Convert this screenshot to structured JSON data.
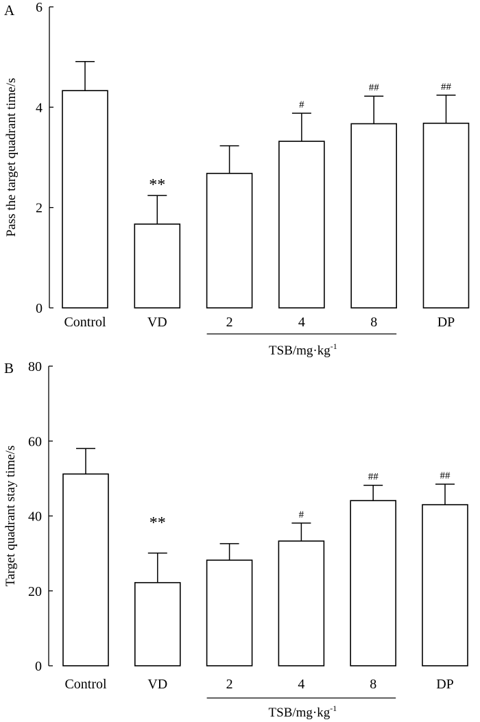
{
  "chart_data": [
    {
      "panel_label": "A",
      "type": "bar",
      "categories": [
        "Control",
        "VD",
        "2",
        "4",
        "8",
        "DP"
      ],
      "values": [
        4.33,
        1.67,
        2.68,
        3.32,
        3.67,
        3.68
      ],
      "errors": [
        0.58,
        0.57,
        0.55,
        0.56,
        0.55,
        0.56
      ],
      "significance": [
        "",
        "**",
        "",
        "#",
        "##",
        "##"
      ],
      "xlabel": "",
      "ylabel": "Pass the target quadrant time/s",
      "ylim": [
        0,
        6
      ],
      "yticks": [
        0,
        2,
        4,
        6
      ],
      "group_label": "TSB/mg·kg",
      "group_label_sup": "-1"
    },
    {
      "panel_label": "B",
      "type": "bar",
      "categories": [
        "Control",
        "VD",
        "2",
        "4",
        "8",
        "DP"
      ],
      "values": [
        51.2,
        22.2,
        28.2,
        33.3,
        44.1,
        43.0
      ],
      "errors": [
        6.8,
        7.9,
        4.4,
        4.8,
        4.1,
        5.5
      ],
      "significance": [
        "",
        "**",
        "",
        "#",
        "##",
        "##"
      ],
      "xlabel": "",
      "ylabel": "Target quadrant stay time/s",
      "ylim": [
        0,
        80
      ],
      "yticks": [
        0,
        20,
        40,
        60,
        80
      ],
      "group_label": "TSB/mg·kg",
      "group_label_sup": "-1"
    }
  ]
}
